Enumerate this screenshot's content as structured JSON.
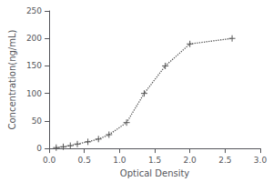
{
  "chart_data": {
    "type": "line",
    "x": [
      0.1,
      0.2,
      0.3,
      0.4,
      0.55,
      0.7,
      0.85,
      1.1,
      1.35,
      1.65,
      2.0,
      2.6
    ],
    "values": [
      1.5,
      3.0,
      5.0,
      8.0,
      12.0,
      17.0,
      25.0,
      47.0,
      100.0,
      150.0,
      190.0,
      200.0
    ],
    "xlabel": "Optical Density",
    "ylabel": "Concentration(ng/mL)",
    "xlim": [
      0,
      3
    ],
    "ylim": [
      0,
      250
    ],
    "xticks": [
      {
        "value": 0,
        "label": "0.0"
      },
      0.5,
      {
        "value": 1.0,
        "label": "1.0"
      },
      1.5,
      {
        "value": 2.0,
        "label": "2.0"
      },
      2.5,
      {
        "value": 3.0,
        "label": "3.0"
      }
    ],
    "yticks": [
      0,
      50,
      100,
      150,
      200,
      250
    ],
    "color": "#555555",
    "marker": "plus",
    "line_style": "dotted",
    "grid": false
  }
}
